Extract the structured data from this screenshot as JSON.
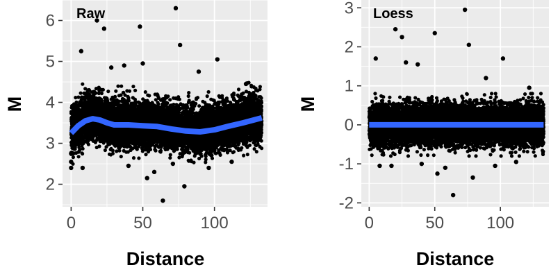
{
  "colors": {
    "panel_background": "#ebebeb",
    "grid_line": "#ffffff",
    "point": "#000000",
    "smooth_line": "#3366ff",
    "tick_label": "#4d4d4d"
  },
  "chart_data": [
    {
      "type": "scatter",
      "title": "Raw",
      "xlabel": "Distance",
      "ylabel": "M",
      "xlim": [
        -6,
        137
      ],
      "ylim": [
        1.45,
        6.5
      ],
      "x_ticks": [
        0,
        50,
        100
      ],
      "y_ticks": [
        2,
        3,
        4,
        5,
        6
      ],
      "x_tick_labels": [
        "0",
        "50",
        "100"
      ],
      "y_tick_labels": [
        "2",
        "3",
        "4",
        "5",
        "6"
      ],
      "grid": true,
      "legend": "none",
      "point_cloud": {
        "x_range": [
          0,
          133
        ],
        "dense_band_center": 3.45,
        "dense_band_low": 2.9,
        "dense_band_high": 4.1,
        "approx_points": 9000
      },
      "outliers": [
        {
          "x": 18,
          "y": 6.0
        },
        {
          "x": 23,
          "y": 5.8
        },
        {
          "x": 48,
          "y": 5.85
        },
        {
          "x": 73,
          "y": 6.3
        },
        {
          "x": 76,
          "y": 5.4
        },
        {
          "x": 7,
          "y": 5.25
        },
        {
          "x": 102,
          "y": 5.05
        },
        {
          "x": 50,
          "y": 4.95
        },
        {
          "x": 37,
          "y": 4.9
        },
        {
          "x": 89,
          "y": 4.75
        },
        {
          "x": 122,
          "y": 4.45
        },
        {
          "x": 28,
          "y": 4.85
        },
        {
          "x": 64,
          "y": 1.6
        },
        {
          "x": 79,
          "y": 1.95
        },
        {
          "x": 53,
          "y": 2.15
        },
        {
          "x": 8,
          "y": 2.4
        },
        {
          "x": 58,
          "y": 2.3
        },
        {
          "x": 96,
          "y": 2.4
        },
        {
          "x": 40,
          "y": 2.45
        },
        {
          "x": 0,
          "y": 2.4
        },
        {
          "x": 0,
          "y": 2.55
        },
        {
          "x": 0,
          "y": 2.75
        },
        {
          "x": 71,
          "y": 2.5
        },
        {
          "x": 112,
          "y": 2.55
        }
      ],
      "smooth": {
        "x": [
          0,
          5,
          10,
          15,
          20,
          25,
          30,
          40,
          50,
          60,
          70,
          80,
          90,
          100,
          110,
          120,
          133
        ],
        "y": [
          3.25,
          3.43,
          3.55,
          3.6,
          3.57,
          3.5,
          3.45,
          3.45,
          3.43,
          3.41,
          3.35,
          3.3,
          3.28,
          3.33,
          3.42,
          3.5,
          3.62
        ]
      }
    },
    {
      "type": "scatter",
      "title": "Loess",
      "xlabel": "Distance",
      "ylabel": "M",
      "xlim": [
        -6,
        137
      ],
      "ylim": [
        -2.1,
        3.2
      ],
      "x_ticks": [
        0,
        50,
        100
      ],
      "y_ticks": [
        -2,
        -1,
        0,
        1,
        2,
        3
      ],
      "x_tick_labels": [
        "0",
        "50",
        "100"
      ],
      "y_tick_labels": [
        "-2",
        "-1",
        "0",
        "1",
        "2",
        "3"
      ],
      "grid": true,
      "legend": "none",
      "point_cloud": {
        "x_range": [
          0,
          133
        ],
        "dense_band_center": 0,
        "dense_band_low": -0.55,
        "dense_band_high": 0.55,
        "approx_points": 9000
      },
      "outliers": [
        {
          "x": 73,
          "y": 2.95
        },
        {
          "x": 20,
          "y": 2.45
        },
        {
          "x": 25,
          "y": 2.25
        },
        {
          "x": 50,
          "y": 2.35
        },
        {
          "x": 76,
          "y": 2.05
        },
        {
          "x": 5,
          "y": 1.7
        },
        {
          "x": 102,
          "y": 1.7
        },
        {
          "x": 37,
          "y": 1.55
        },
        {
          "x": 28,
          "y": 1.6
        },
        {
          "x": 89,
          "y": 1.2
        },
        {
          "x": 122,
          "y": 0.95
        },
        {
          "x": 64,
          "y": -1.8
        },
        {
          "x": 79,
          "y": -1.35
        },
        {
          "x": 52,
          "y": -1.25
        },
        {
          "x": 8,
          "y": -1.05
        },
        {
          "x": 40,
          "y": -1.0
        },
        {
          "x": 96,
          "y": -1.05
        },
        {
          "x": 58,
          "y": -1.1
        },
        {
          "x": 17,
          "y": -1.05
        },
        {
          "x": 112,
          "y": -0.95
        }
      ],
      "smooth": {
        "x": [
          0,
          133
        ],
        "y": [
          0,
          0
        ]
      }
    }
  ]
}
